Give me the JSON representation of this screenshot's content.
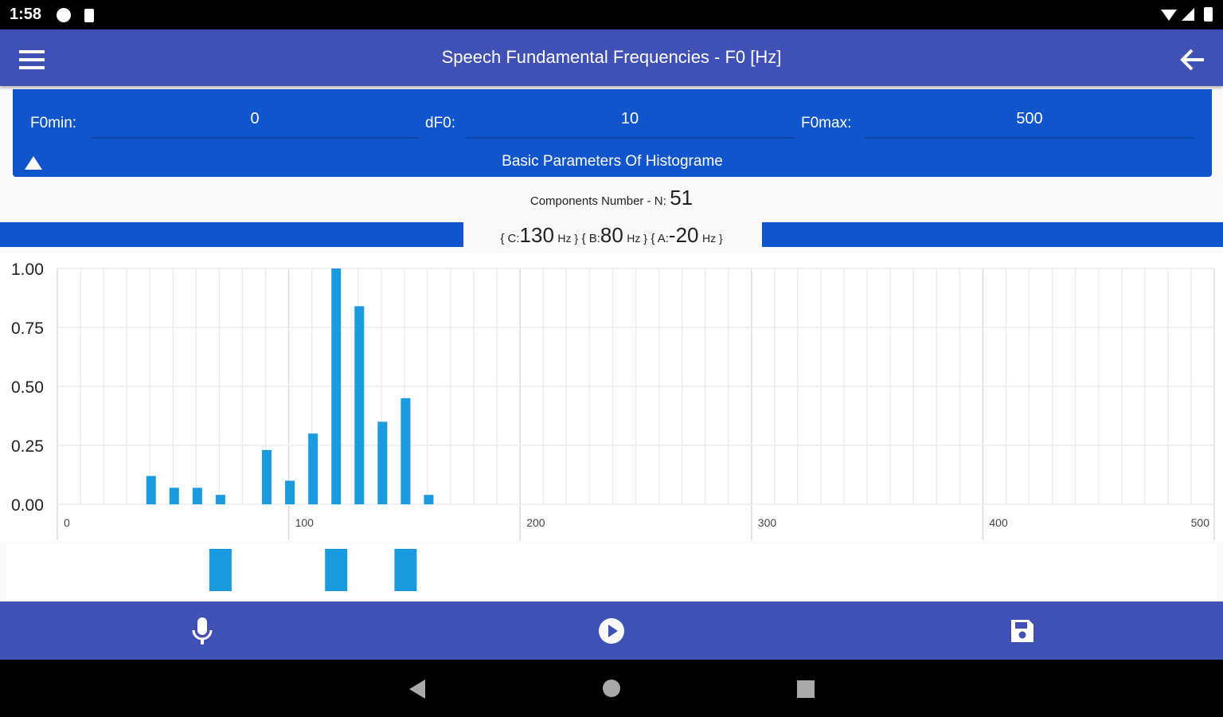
{
  "status_bar": {
    "time": "1:58"
  },
  "app_bar": {
    "title": "Speech Fundamental Frequencies - F0 [Hz]",
    "menu_icon": "hamburger-menu-icon",
    "back_icon": "arrow-back-icon"
  },
  "params": {
    "f0min_label": "F0min:",
    "f0min_value": "0",
    "df0_label": "dF0:",
    "df0_value": "10",
    "f0max_label": "F0max:",
    "f0max_value": "500",
    "section_title": "Basic Parameters Of Histograme",
    "collapse_icon": "triangle-up-icon"
  },
  "components": {
    "label": "Components Number - N:",
    "value": "51"
  },
  "peaks": {
    "c_label": "{ C:",
    "c_value": "130",
    "c_unit": "Hz }",
    "b_label": "{ B:",
    "b_value": "80",
    "b_unit": "Hz }",
    "a_label": "{ A:",
    "a_value": "-20",
    "a_unit": "Hz }"
  },
  "colors": {
    "primary": "#3f51b5",
    "panel": "#1155cc",
    "bar": "#1a9be0"
  },
  "chart_data": {
    "type": "bar",
    "x": [
      40,
      50,
      60,
      70,
      90,
      100,
      110,
      120,
      130,
      140,
      150,
      160
    ],
    "values": [
      0.12,
      0.07,
      0.07,
      0.04,
      0.23,
      0.1,
      0.3,
      1.0,
      0.84,
      0.35,
      0.45,
      0.04
    ],
    "xlim": [
      0,
      500
    ],
    "ylim": [
      0,
      1
    ],
    "xticks": [
      "0",
      "100",
      "200",
      "300",
      "400",
      "500"
    ],
    "yticks": [
      "0.00",
      "0.25",
      "0.50",
      "0.75",
      "1.00"
    ],
    "grid": true,
    "markers": [
      70,
      120,
      150
    ]
  },
  "bottom_bar": {
    "icons": [
      "microphone-icon",
      "play-icon",
      "save-icon"
    ]
  }
}
